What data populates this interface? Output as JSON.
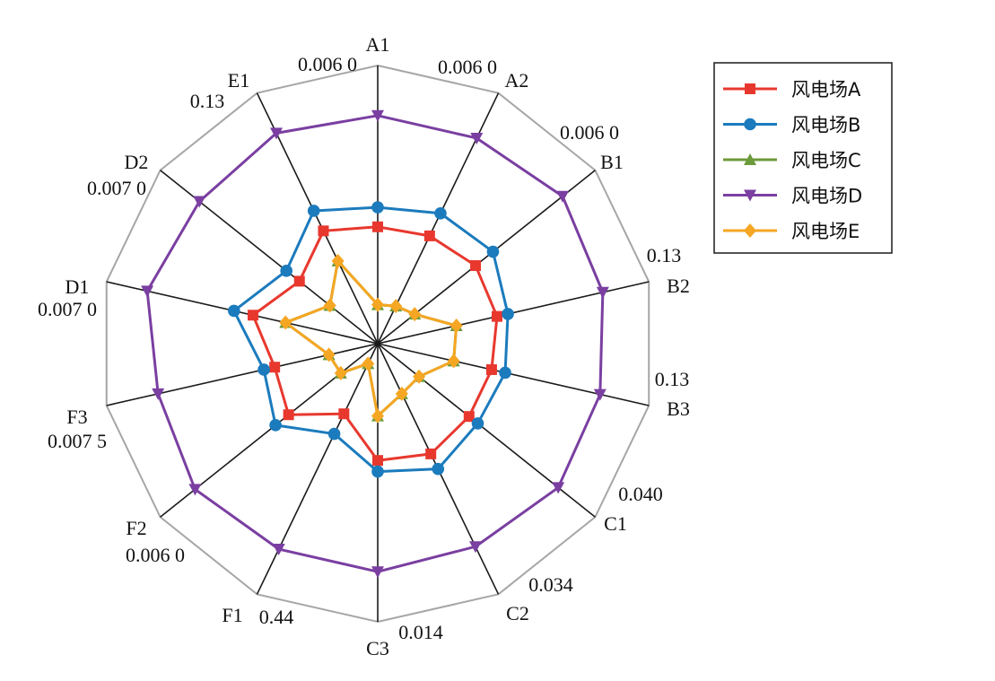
{
  "chart_data": {
    "type": "radar",
    "title": "",
    "axes": [
      {
        "name": "A1",
        "max": "0.006 0"
      },
      {
        "name": "A2",
        "max": "0.006 0"
      },
      {
        "name": "B1",
        "max": "0.006 0"
      },
      {
        "name": "B2",
        "max": "0.13"
      },
      {
        "name": "B3",
        "max": "0.13"
      },
      {
        "name": "C1",
        "max": "0.040"
      },
      {
        "name": "C2",
        "max": "0.034"
      },
      {
        "name": "C3",
        "max": "0.014"
      },
      {
        "name": "F1",
        "max": "0.44"
      },
      {
        "name": "F2",
        "max": "0.006 0"
      },
      {
        "name": "F3",
        "max": "0.007 5"
      },
      {
        "name": "D1",
        "max": "0.007 0"
      },
      {
        "name": "D2",
        "max": "0.007 0"
      },
      {
        "name": "E1",
        "max": "0.13"
      }
    ],
    "axis_max_numeric": [
      0.006,
      0.006,
      0.006,
      0.13,
      0.13,
      0.04,
      0.034,
      0.014,
      0.44,
      0.006,
      0.0075,
      0.007,
      0.007,
      0.13
    ],
    "value_scale": "fraction of axis maximum",
    "series": [
      {
        "name": "风电场A",
        "color": "#e8382e",
        "marker": "square",
        "values": [
          0.42,
          0.43,
          0.45,
          0.44,
          0.42,
          0.42,
          0.44,
          0.42,
          0.28,
          0.41,
          0.38,
          0.46,
          0.36,
          0.45
        ]
      },
      {
        "name": "风电场B",
        "color": "#1b7bbd",
        "marker": "circle",
        "values": [
          0.49,
          0.52,
          0.53,
          0.48,
          0.47,
          0.46,
          0.5,
          0.46,
          0.36,
          0.47,
          0.42,
          0.53,
          0.42,
          0.53
        ]
      },
      {
        "name": "风电场C",
        "color": "#6c9a3a",
        "marker": "triangle-up",
        "values": [
          0.14,
          0.15,
          0.17,
          0.29,
          0.28,
          0.19,
          0.2,
          0.26,
          0.08,
          0.17,
          0.18,
          0.34,
          0.22,
          0.33
        ]
      },
      {
        "name": "风电场D",
        "color": "#7a3fa1",
        "marker": "triangle-down",
        "values": [
          0.82,
          0.82,
          0.85,
          0.83,
          0.82,
          0.83,
          0.81,
          0.82,
          0.82,
          0.84,
          0.81,
          0.85,
          0.82,
          0.84
        ]
      },
      {
        "name": "风电场E",
        "color": "#f5a623",
        "marker": "diamond",
        "values": [
          0.14,
          0.15,
          0.17,
          0.29,
          0.28,
          0.19,
          0.2,
          0.26,
          0.08,
          0.17,
          0.18,
          0.34,
          0.22,
          0.33
        ]
      }
    ],
    "grid": "polygon outline and spokes",
    "legend_placement": "top-right"
  }
}
